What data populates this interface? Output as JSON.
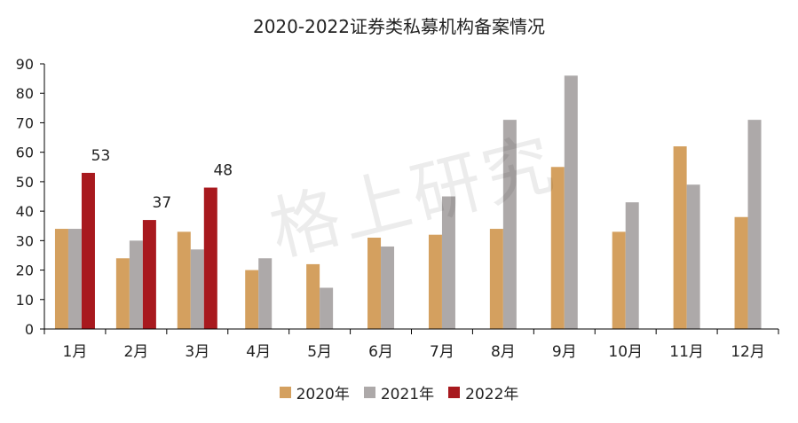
{
  "watermark": "格上研究",
  "chart_data": {
    "type": "bar",
    "title": "2020-2022证券类私募机构备案情况",
    "categories": [
      "1月",
      "2月",
      "3月",
      "4月",
      "5月",
      "6月",
      "7月",
      "8月",
      "9月",
      "10月",
      "11月",
      "12月"
    ],
    "series": [
      {
        "name": "2020年",
        "color": "#D4A05F",
        "values": [
          34,
          24,
          33,
          20,
          22,
          31,
          32,
          34,
          55,
          33,
          62,
          38
        ]
      },
      {
        "name": "2021年",
        "color": "#ADA9A9",
        "values": [
          34,
          30,
          27,
          24,
          14,
          28,
          45,
          71,
          86,
          43,
          49,
          71
        ]
      },
      {
        "name": "2022年",
        "color": "#A8191E",
        "values": [
          53,
          37,
          48,
          null,
          null,
          null,
          null,
          null,
          null,
          null,
          null,
          null
        ]
      }
    ],
    "data_labels": {
      "series": "2022年",
      "values": [
        "53",
        "37",
        "48"
      ]
    },
    "yticks": [
      "0",
      "10",
      "20",
      "30",
      "40",
      "50",
      "60",
      "70",
      "80",
      "90"
    ],
    "ylim": [
      0,
      90
    ],
    "xlabel": "",
    "ylabel": "",
    "legend_position": "bottom"
  }
}
